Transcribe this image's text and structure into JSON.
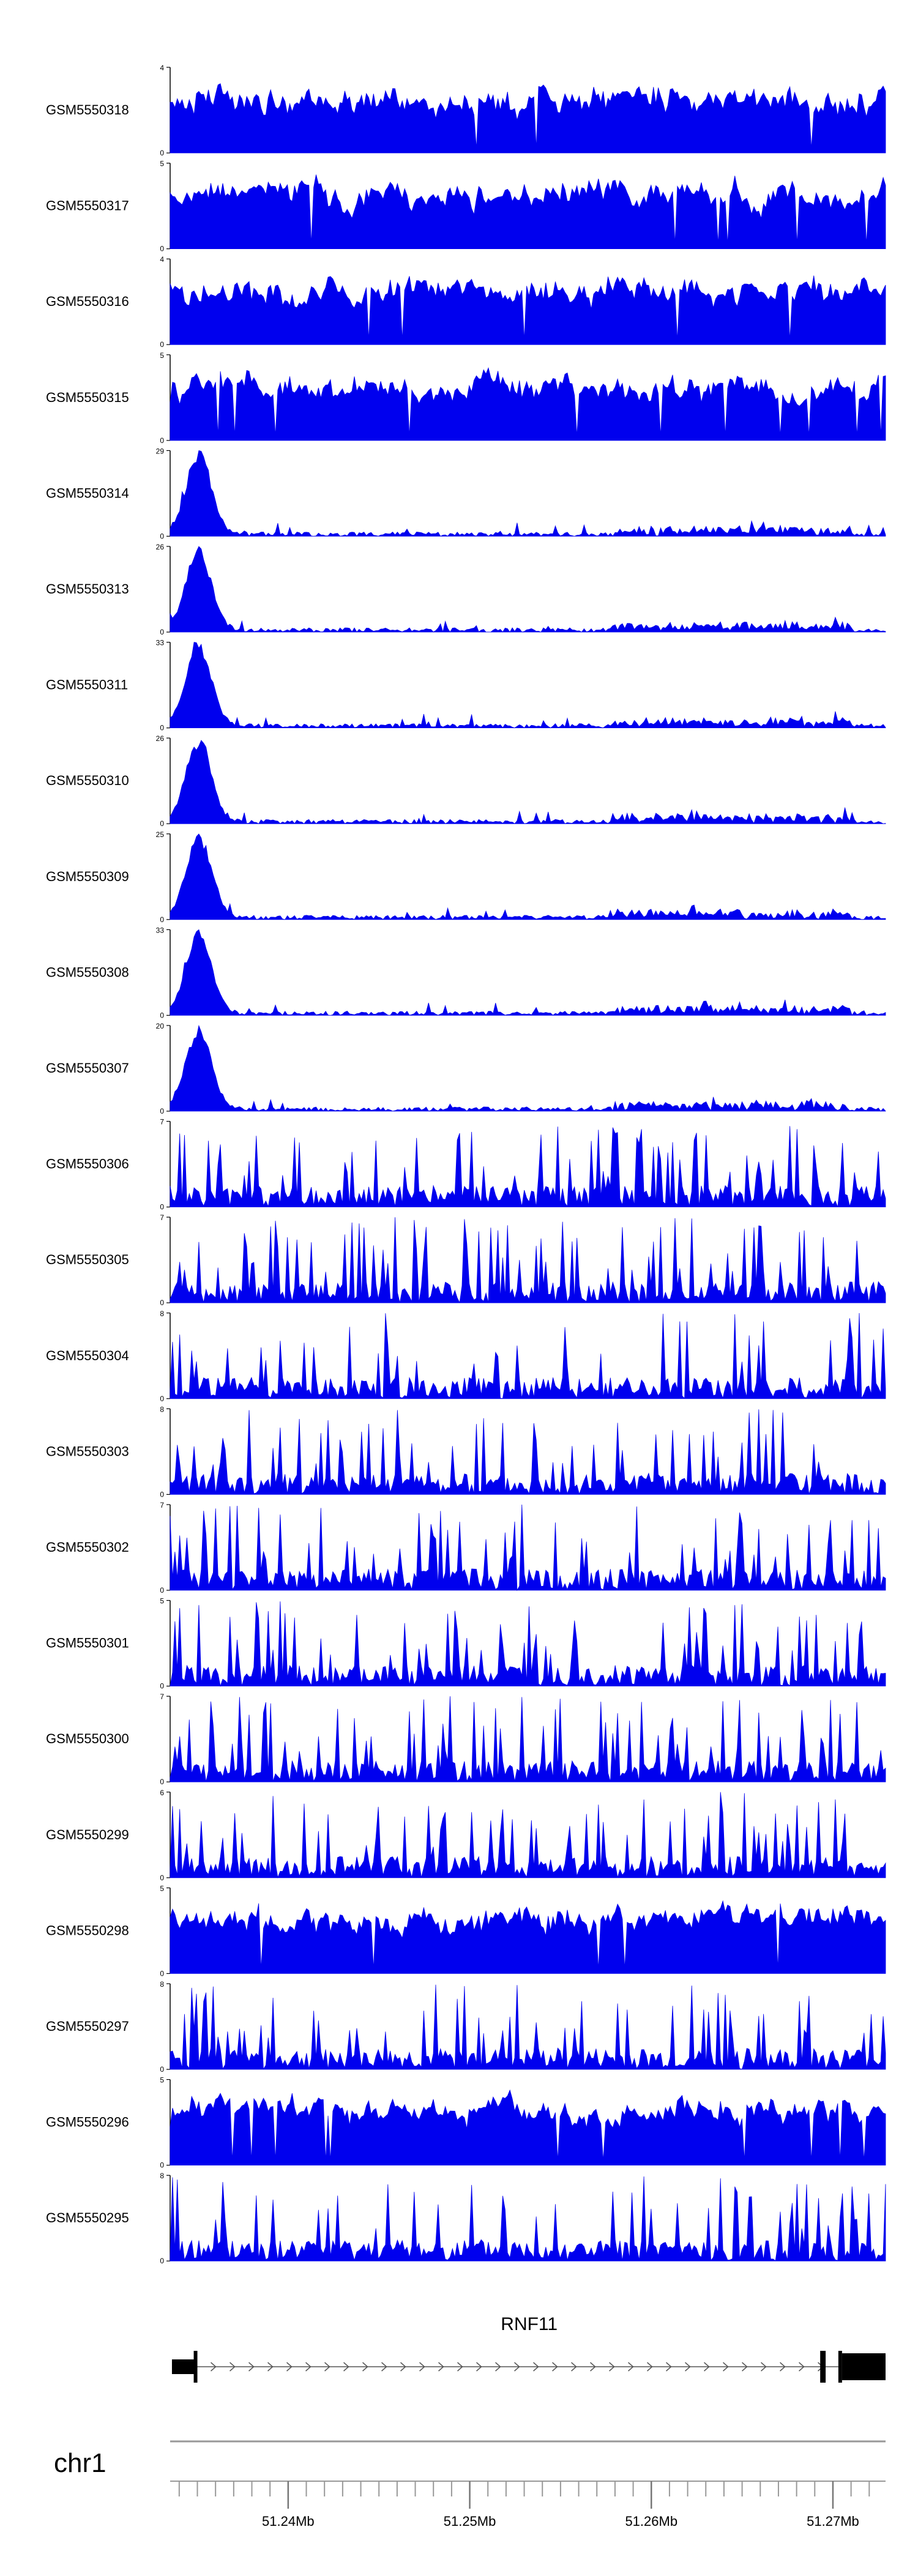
{
  "chart_data": {
    "type": "area",
    "track_color": "#0000ee",
    "tracks": [
      {
        "name": "GSM5550318",
        "ymax": 4,
        "profile": "uniform",
        "seed": 318
      },
      {
        "name": "GSM5550317",
        "ymax": 5,
        "profile": "uniform",
        "seed": 317
      },
      {
        "name": "GSM5550316",
        "ymax": 4,
        "profile": "uniform",
        "seed": 316
      },
      {
        "name": "GSM5550315",
        "ymax": 5,
        "profile": "uniform",
        "seed": 315
      },
      {
        "name": "GSM5550314",
        "ymax": 29,
        "profile": "peak",
        "seed": 314
      },
      {
        "name": "GSM5550313",
        "ymax": 26,
        "profile": "peak",
        "seed": 313
      },
      {
        "name": "GSM5550311",
        "ymax": 33,
        "profile": "peak",
        "seed": 311
      },
      {
        "name": "GSM5550310",
        "ymax": 26,
        "profile": "peak",
        "seed": 310
      },
      {
        "name": "GSM5550309",
        "ymax": 25,
        "profile": "peak",
        "seed": 309
      },
      {
        "name": "GSM5550308",
        "ymax": 33,
        "profile": "peak",
        "seed": 308
      },
      {
        "name": "GSM5550307",
        "ymax": 20,
        "profile": "peak",
        "seed": 307
      },
      {
        "name": "GSM5550306",
        "ymax": 7,
        "profile": "spiky",
        "seed": 306
      },
      {
        "name": "GSM5550305",
        "ymax": 7,
        "profile": "spiky",
        "seed": 305
      },
      {
        "name": "GSM5550304",
        "ymax": 8,
        "profile": "spiky",
        "seed": 304
      },
      {
        "name": "GSM5550303",
        "ymax": 8,
        "profile": "spiky",
        "seed": 303
      },
      {
        "name": "GSM5550302",
        "ymax": 7,
        "profile": "spiky",
        "seed": 302
      },
      {
        "name": "GSM5550301",
        "ymax": 5,
        "profile": "spiky",
        "seed": 301
      },
      {
        "name": "GSM5550300",
        "ymax": 7,
        "profile": "spiky",
        "seed": 300
      },
      {
        "name": "GSM5550299",
        "ymax": 6,
        "profile": "spiky",
        "seed": 299
      },
      {
        "name": "GSM5550298",
        "ymax": 5,
        "profile": "uniform",
        "seed": 298
      },
      {
        "name": "GSM5550297",
        "ymax": 8,
        "profile": "spiky",
        "seed": 297
      },
      {
        "name": "GSM5550296",
        "ymax": 5,
        "profile": "uniform",
        "seed": 296
      },
      {
        "name": "GSM5550295",
        "ymax": 8,
        "profile": "spiky",
        "seed": 295
      }
    ],
    "gene": {
      "name": "RNF11",
      "exons": [
        [
          51.2336,
          51.2349
        ],
        [
          51.2693,
          51.2696
        ],
        [
          51.2703,
          51.2729
        ]
      ],
      "intron": [
        51.2349,
        51.2703
      ]
    },
    "chromosome": "chr1",
    "x_range": [
      51.2335,
      51.2729
    ],
    "x_unit": "Mb",
    "x_ticks": [
      51.24,
      51.25,
      51.26,
      51.27
    ],
    "x_tick_labels": [
      "51.24Mb",
      "51.25Mb",
      "51.26Mb",
      "51.27Mb"
    ],
    "ymin": 0
  }
}
